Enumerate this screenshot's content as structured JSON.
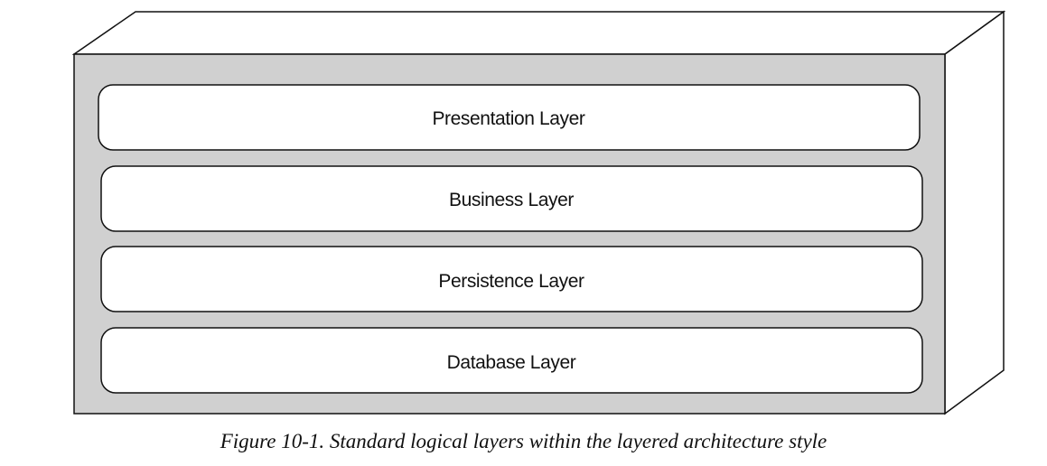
{
  "layers": [
    {
      "label": "Presentation Layer"
    },
    {
      "label": "Business Layer"
    },
    {
      "label": "Persistence Layer"
    },
    {
      "label": "Database Layer"
    }
  ],
  "caption": "Figure 10-1. Standard logical layers within the layered architecture style",
  "colors": {
    "container_fill": "#d0d0d0",
    "layer_fill": "#ffffff",
    "stroke": "#111111"
  }
}
